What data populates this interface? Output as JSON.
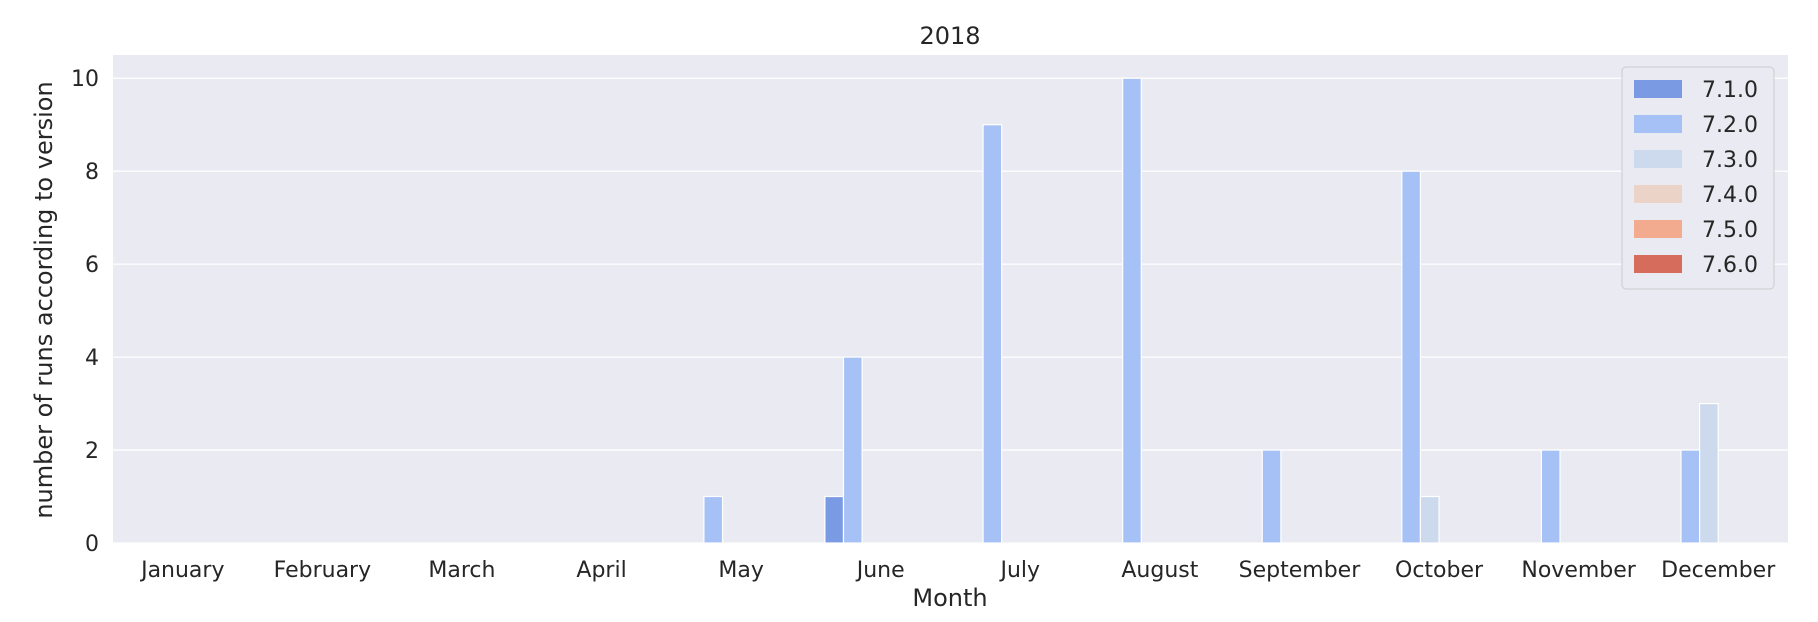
{
  "chart_data": {
    "type": "bar",
    "title": "2018",
    "xlabel": "Month",
    "ylabel": "number of runs according to version",
    "categories": [
      "January",
      "February",
      "March",
      "April",
      "May",
      "June",
      "July",
      "August",
      "September",
      "October",
      "November",
      "December"
    ],
    "series": [
      {
        "name": "7.1.0",
        "color": "#7b9ae4",
        "values": [
          0,
          0,
          0,
          0,
          0,
          1,
          0,
          0,
          0,
          0,
          0,
          0
        ]
      },
      {
        "name": "7.2.0",
        "color": "#a5c1f5",
        "values": [
          0,
          0,
          0,
          0,
          1,
          4,
          9,
          10,
          2,
          8,
          2,
          2
        ]
      },
      {
        "name": "7.3.0",
        "color": "#cdd9ec",
        "values": [
          0,
          0,
          0,
          0,
          0,
          0,
          0,
          0,
          0,
          1,
          0,
          3
        ]
      },
      {
        "name": "7.4.0",
        "color": "#ecd3c7",
        "values": [
          0,
          0,
          0,
          0,
          0,
          0,
          0,
          0,
          0,
          0,
          0,
          0
        ]
      },
      {
        "name": "7.5.0",
        "color": "#f2ab8e",
        "values": [
          0,
          0,
          0,
          0,
          0,
          0,
          0,
          0,
          0,
          0,
          0,
          0
        ]
      },
      {
        "name": "7.6.0",
        "color": "#d66d5c",
        "values": [
          0,
          0,
          0,
          0,
          0,
          0,
          0,
          0,
          0,
          0,
          0,
          0
        ]
      }
    ],
    "yticks": [
      "0",
      "2",
      "4",
      "6",
      "8",
      "10"
    ],
    "ylim": [
      0,
      10.5
    ],
    "grid": true,
    "legend_position": "top-right",
    "background_color": "#eaeaf2",
    "grid_color": "#ffffff"
  }
}
